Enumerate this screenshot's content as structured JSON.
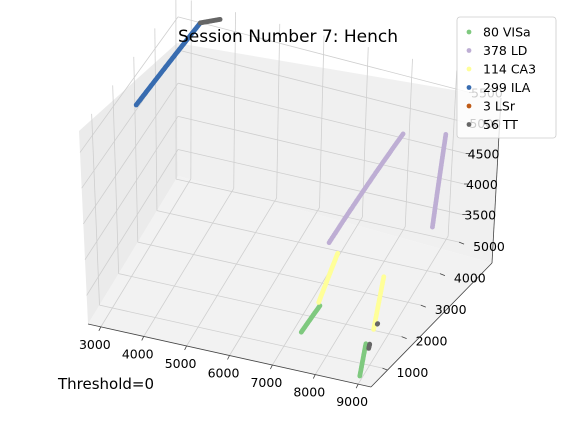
{
  "chart_data": {
    "type": "scatter",
    "projection": "3d",
    "title": "Session Number 7: Hench",
    "annotation": "Threshold=0",
    "xlabel": "",
    "ylabel": "",
    "zlabel": "",
    "xlim": [
      2700,
      9300
    ],
    "ylim": [
      400,
      5100
    ],
    "zlim": [
      3100,
      5800
    ],
    "x_ticks": [
      "3000",
      "4000",
      "5000",
      "6000",
      "7000",
      "8000",
      "9000"
    ],
    "y_ticks": [
      "1000",
      "2000",
      "3000",
      "4000",
      "5000"
    ],
    "z_ticks": [
      "3500",
      "4000",
      "4500",
      "5000",
      "5500"
    ],
    "grid": true,
    "legend_position": "top-right",
    "series": [
      {
        "name": "80 VISa",
        "color": "#7fc97f",
        "segments": [
          {
            "from": [
              7250,
              1350,
              3180
            ],
            "to": [
              7550,
              1650,
              3480
            ],
            "count": 30
          },
          {
            "from": [
              8950,
              600,
              3120
            ],
            "to": [
              9000,
              800,
              3520
            ],
            "count": 24
          }
        ]
      },
      {
        "name": "378 LD",
        "color": "#beaed4",
        "segments": [
          {
            "from": [
              7600,
              2000,
              4280
            ],
            "to": [
              8700,
              3200,
              5600
            ],
            "count": 70
          },
          {
            "from": [
              9000,
              4200,
              3700
            ],
            "to": [
              9000,
              4700,
              4950
            ],
            "count": 55
          }
        ]
      },
      {
        "name": "114 CA3",
        "color": "#ffff99",
        "segments": [
          {
            "from": [
              7500,
              1700,
              3500
            ],
            "to": [
              7800,
              2000,
              4150
            ],
            "count": 40
          },
          {
            "from": [
              9000,
              1200,
              3550
            ],
            "to": [
              9000,
              1700,
              4120
            ],
            "count": 30
          }
        ]
      },
      {
        "name": "299 ILA",
        "color": "#386cb0",
        "segments": [
          {
            "from": [
              3000,
              2450,
              5380
            ],
            "to": [
              3300,
              4900,
              5600
            ],
            "count": 90
          }
        ]
      },
      {
        "name": "3 LSr",
        "color": "#bf5b17",
        "segments": [
          {
            "from": [
              2950,
              5050,
              5950
            ],
            "to": [
              2965,
              5060,
              5960
            ],
            "count": 3
          }
        ]
      },
      {
        "name": "56 TT",
        "color": "#666666",
        "segments": [
          {
            "from": [
              3300,
              4900,
              5600
            ],
            "to": [
              3700,
              5000,
              5680
            ],
            "count": 22
          },
          {
            "from": [
              8950,
              1500,
              3480
            ],
            "to": [
              8955,
              1510,
              3485
            ],
            "count": 2
          },
          {
            "from": [
              9000,
              950,
              3380
            ],
            "to": [
              9000,
              1000,
              3420
            ],
            "count": 6
          }
        ]
      }
    ]
  }
}
